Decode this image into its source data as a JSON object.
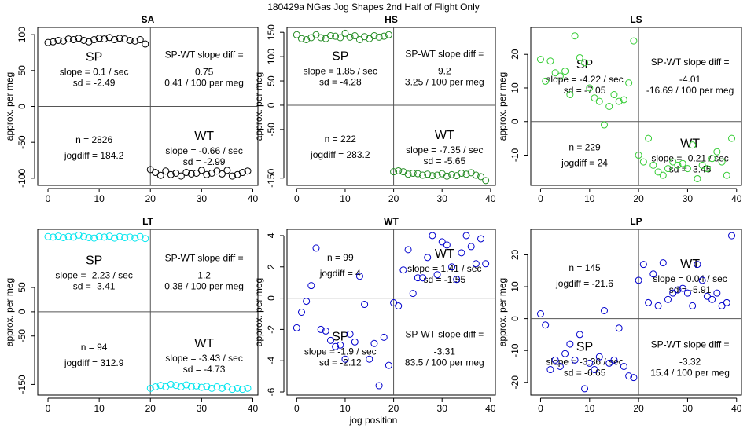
{
  "figure": {
    "title": "180429a   NGas Jog Shapes 2nd Half of Flight Only",
    "xlabel": "jog position"
  },
  "chart_data": [
    {
      "id": "SA",
      "type": "scatter",
      "title": "SA",
      "color": "#000000",
      "ylabel": "approx. per meg",
      "xlim": [
        -2,
        41
      ],
      "ylim": [
        -110,
        110
      ],
      "xticks": [
        0,
        10,
        20,
        30,
        40
      ],
      "xtick_labels": [
        "0",
        "10",
        "20",
        "30",
        "40"
      ],
      "yticks": [
        -100,
        -50,
        0,
        50,
        100
      ],
      "ytick_labels": [
        "-100",
        "-50",
        "0",
        "50",
        "100"
      ],
      "hline": 0,
      "vline": 20,
      "points": [
        [
          0,
          89
        ],
        [
          1,
          90
        ],
        [
          2,
          92
        ],
        [
          3,
          91
        ],
        [
          4,
          94
        ],
        [
          5,
          93
        ],
        [
          6,
          95
        ],
        [
          7,
          92
        ],
        [
          8,
          90
        ],
        [
          9,
          93
        ],
        [
          10,
          95
        ],
        [
          11,
          94
        ],
        [
          12,
          96
        ],
        [
          13,
          93
        ],
        [
          14,
          95
        ],
        [
          15,
          94
        ],
        [
          16,
          92
        ],
        [
          17,
          91
        ],
        [
          18,
          93
        ],
        [
          19,
          87
        ],
        [
          20,
          -88
        ],
        [
          21,
          -92
        ],
        [
          22,
          -96
        ],
        [
          23,
          -90
        ],
        [
          24,
          -95
        ],
        [
          25,
          -93
        ],
        [
          26,
          -97
        ],
        [
          27,
          -92
        ],
        [
          28,
          -94
        ],
        [
          29,
          -93
        ],
        [
          30,
          -89
        ],
        [
          31,
          -95
        ],
        [
          32,
          -93
        ],
        [
          33,
          -90
        ],
        [
          34,
          -94
        ],
        [
          35,
          -89
        ],
        [
          36,
          -97
        ],
        [
          37,
          -95
        ],
        [
          38,
          -92
        ],
        [
          39,
          -90
        ]
      ],
      "annotations": {
        "sp_label": "SP",
        "sp_slope": "slope = 0.1 / sec",
        "sp_sd": "sd = -2.49",
        "wt_label": "WT",
        "wt_slope": "slope = -0.66 / sec",
        "wt_sd": "sd = -2.99",
        "n": "n = 2826",
        "jogdiff": "jogdiff = 184.2",
        "diff_title": "SP-WT slope diff =",
        "diff_value": "0.75",
        "diff_per": "0.41 / 100 per meg"
      }
    },
    {
      "id": "HS",
      "type": "scatter",
      "title": "HS",
      "color": "#228B22",
      "ylabel": "approx. per meg",
      "xlim": [
        -2,
        41
      ],
      "ylim": [
        -165,
        160
      ],
      "xticks": [
        0,
        10,
        20,
        30,
        40
      ],
      "xtick_labels": [
        "0",
        "10",
        "20",
        "30",
        "40"
      ],
      "yticks": [
        -150,
        -50,
        0,
        50,
        100,
        150
      ],
      "ytick_labels": [
        "-150",
        "-50",
        "0",
        "50",
        "100",
        "150"
      ],
      "hline": 0,
      "vline": 20,
      "points": [
        [
          0,
          145
        ],
        [
          1,
          137
        ],
        [
          2,
          135
        ],
        [
          3,
          139
        ],
        [
          4,
          145
        ],
        [
          5,
          139
        ],
        [
          6,
          137
        ],
        [
          7,
          143
        ],
        [
          8,
          142
        ],
        [
          9,
          139
        ],
        [
          10,
          148
        ],
        [
          11,
          140
        ],
        [
          12,
          143
        ],
        [
          13,
          135
        ],
        [
          14,
          141
        ],
        [
          15,
          137
        ],
        [
          16,
          143
        ],
        [
          17,
          140
        ],
        [
          18,
          142
        ],
        [
          19,
          145
        ],
        [
          20,
          -137
        ],
        [
          21,
          -135
        ],
        [
          22,
          -137
        ],
        [
          23,
          -142
        ],
        [
          24,
          -140
        ],
        [
          25,
          -141
        ],
        [
          26,
          -144
        ],
        [
          27,
          -142
        ],
        [
          28,
          -145
        ],
        [
          29,
          -144
        ],
        [
          30,
          -141
        ],
        [
          31,
          -146
        ],
        [
          32,
          -143
        ],
        [
          33,
          -145
        ],
        [
          34,
          -140
        ],
        [
          35,
          -142
        ],
        [
          36,
          -139
        ],
        [
          37,
          -144
        ],
        [
          38,
          -147
        ],
        [
          39,
          -155
        ]
      ],
      "annotations": {
        "sp_label": "SP",
        "sp_slope": "slope = 1.85 / sec",
        "sp_sd": "sd = -4.28",
        "wt_label": "WT",
        "wt_slope": "slope = -7.35 / sec",
        "wt_sd": "sd = -5.65",
        "n": "n = 222",
        "jogdiff": "jogdiff = 283.2",
        "diff_title": "SP-WT slope diff =",
        "diff_value": "9.2",
        "diff_per": "3.25 / 100 per meg"
      }
    },
    {
      "id": "LS",
      "type": "scatter",
      "title": "LS",
      "color": "#33CC33",
      "ylabel": "approx. per meg",
      "xlim": [
        -2,
        41
      ],
      "ylim": [
        -19,
        28
      ],
      "xticks": [
        0,
        10,
        20,
        30,
        40
      ],
      "xtick_labels": [
        "0",
        "10",
        "20",
        "30",
        "40"
      ],
      "yticks": [
        -10,
        0,
        10,
        20
      ],
      "ytick_labels": [
        "-10",
        "0",
        "10",
        "20"
      ],
      "hline": 0,
      "vline": 20,
      "points": [
        [
          0,
          18.5
        ],
        [
          1,
          12
        ],
        [
          2,
          18
        ],
        [
          3,
          14.5
        ],
        [
          4,
          13.5
        ],
        [
          5,
          15
        ],
        [
          6,
          8
        ],
        [
          7,
          25.5
        ],
        [
          8,
          19
        ],
        [
          9,
          17.5
        ],
        [
          10,
          10
        ],
        [
          11,
          7
        ],
        [
          12,
          6
        ],
        [
          13,
          -1
        ],
        [
          14,
          4.5
        ],
        [
          15,
          8
        ],
        [
          16,
          6
        ],
        [
          17,
          6.5
        ],
        [
          18,
          11.5
        ],
        [
          19,
          24
        ],
        [
          20,
          -10
        ],
        [
          21,
          -12
        ],
        [
          22,
          -5
        ],
        [
          23,
          -13
        ],
        [
          24,
          -15
        ],
        [
          25,
          -16
        ],
        [
          26,
          -14
        ],
        [
          27,
          -12
        ],
        [
          28,
          -13
        ],
        [
          29,
          -12.5
        ],
        [
          30,
          -14
        ],
        [
          31,
          -7
        ],
        [
          32,
          -17
        ],
        [
          33,
          -13
        ],
        [
          34,
          -14
        ],
        [
          35,
          -11
        ],
        [
          36,
          -9
        ],
        [
          37,
          -12
        ],
        [
          38,
          -16
        ],
        [
          39,
          -5
        ]
      ],
      "annotations": {
        "sp_label": "SP",
        "sp_slope": "slope = -4.22 / sec",
        "sp_sd": "sd = -7.05",
        "wt_label": "WT",
        "wt_slope": "slope = -0.21 / sec",
        "wt_sd": "sd = -3.45",
        "n": "n = 229",
        "jogdiff": "jogdiff = 24",
        "diff_title": "SP-WT slope diff =",
        "diff_value": "-4.01",
        "diff_per": "-16.69 / 100 per meg"
      }
    },
    {
      "id": "LT",
      "type": "scatter",
      "title": "LT",
      "color": "#00E5EE",
      "ylabel": "approx. per meg",
      "xlim": [
        -2,
        41
      ],
      "ylim": [
        -172,
        170
      ],
      "xticks": [
        0,
        10,
        20,
        30,
        40
      ],
      "xtick_labels": [
        "0",
        "10",
        "20",
        "30",
        "40"
      ],
      "yticks": [
        -150,
        -50,
        0,
        50
      ],
      "ytick_labels": [
        "-150",
        "-50",
        "0",
        "50"
      ],
      "hline": 0,
      "vline": 20,
      "points": [
        [
          0,
          155
        ],
        [
          1,
          154
        ],
        [
          2,
          156
        ],
        [
          3,
          153
        ],
        [
          4,
          155
        ],
        [
          5,
          154
        ],
        [
          6,
          158
        ],
        [
          7,
          155
        ],
        [
          8,
          153
        ],
        [
          9,
          152
        ],
        [
          10,
          155
        ],
        [
          11,
          154
        ],
        [
          12,
          156
        ],
        [
          13,
          152
        ],
        [
          14,
          155
        ],
        [
          15,
          153
        ],
        [
          16,
          154
        ],
        [
          17,
          152
        ],
        [
          18,
          155
        ],
        [
          19,
          151
        ],
        [
          20,
          -158
        ],
        [
          21,
          -155
        ],
        [
          22,
          -152
        ],
        [
          23,
          -155
        ],
        [
          24,
          -150
        ],
        [
          25,
          -152
        ],
        [
          26,
          -155
        ],
        [
          27,
          -151
        ],
        [
          28,
          -155
        ],
        [
          29,
          -153
        ],
        [
          30,
          -156
        ],
        [
          31,
          -154
        ],
        [
          32,
          -158
        ],
        [
          33,
          -155
        ],
        [
          34,
          -158
        ],
        [
          35,
          -155
        ],
        [
          36,
          -160
        ],
        [
          37,
          -158
        ],
        [
          38,
          -160
        ],
        [
          39,
          -158
        ]
      ],
      "annotations": {
        "sp_label": "SP",
        "sp_slope": "slope = -2.23 / sec",
        "sp_sd": "sd = -3.41",
        "wt_label": "WT",
        "wt_slope": "slope = -3.43 / sec",
        "wt_sd": "sd = -4.73",
        "n": "n = 94",
        "jogdiff": "jogdiff = 312.9",
        "diff_title": "SP-WT slope diff =",
        "diff_value": "1.2",
        "diff_per": "0.38 / 100 per meg"
      }
    },
    {
      "id": "WT",
      "type": "scatter",
      "title": "WT",
      "color": "#0000CD",
      "ylabel": "approx. per meg",
      "xlim": [
        -2,
        41
      ],
      "ylim": [
        -6.2,
        4.4
      ],
      "xticks": [
        0,
        10,
        20,
        30,
        40
      ],
      "xtick_labels": [
        "0",
        "10",
        "20",
        "30",
        "40"
      ],
      "yticks": [
        -6,
        -4,
        -2,
        0,
        2,
        4
      ],
      "ytick_labels": [
        "-6",
        "-4",
        "-2",
        "0",
        "2",
        "4"
      ],
      "hline": 0,
      "vline": 20,
      "points": [
        [
          0,
          -1.9
        ],
        [
          1,
          -0.9
        ],
        [
          2,
          -0.2
        ],
        [
          3,
          0.8
        ],
        [
          4,
          3.2
        ],
        [
          5,
          -2
        ],
        [
          6,
          -2.1
        ],
        [
          7,
          -2.7
        ],
        [
          8,
          -3.1
        ],
        [
          9,
          -3
        ],
        [
          10,
          -3.9
        ],
        [
          11,
          -2.3
        ],
        [
          12,
          -2.8
        ],
        [
          13,
          1.4
        ],
        [
          14,
          -0.4
        ],
        [
          15,
          -3.9
        ],
        [
          16,
          -2.9
        ],
        [
          17,
          -5.6
        ],
        [
          18,
          -2.5
        ],
        [
          19,
          -4.3
        ],
        [
          20,
          -0.3
        ],
        [
          21,
          -0.5
        ],
        [
          22,
          1.8
        ],
        [
          23,
          3.1
        ],
        [
          24,
          0.3
        ],
        [
          25,
          1.3
        ],
        [
          26,
          1.3
        ],
        [
          27,
          2.6
        ],
        [
          28,
          4.0
        ],
        [
          29,
          1.5
        ],
        [
          30,
          3.6
        ],
        [
          31,
          3.4
        ],
        [
          32,
          2.0
        ],
        [
          33,
          1.2
        ],
        [
          34,
          2.9
        ],
        [
          35,
          4.0
        ],
        [
          36,
          3.3
        ],
        [
          37,
          2.2
        ],
        [
          38,
          3.8
        ],
        [
          39,
          2.2
        ]
      ],
      "annotations": {
        "sp_label": "SP",
        "sp_slope": "slope = -1.9 / sec",
        "sp_sd": "sd = -2.12",
        "wt_label": "WT",
        "wt_slope": "slope = 1.41 / sec",
        "wt_sd": "sd = -1.55",
        "n": "n = 99",
        "jogdiff": "jogdiff = 4",
        "diff_title": "SP-WT slope diff =",
        "diff_value": "-3.31",
        "diff_per": "83.5 / 100 per meg"
      }
    },
    {
      "id": "LP",
      "type": "scatter",
      "title": "LP",
      "color": "#0000CD",
      "ylabel": "approx. per meg",
      "xlim": [
        -2,
        41
      ],
      "ylim": [
        -24,
        28
      ],
      "xticks": [
        0,
        10,
        20,
        30,
        40
      ],
      "xtick_labels": [
        "0",
        "10",
        "20",
        "30",
        "40"
      ],
      "yticks": [
        -20,
        -10,
        0,
        10,
        20
      ],
      "ytick_labels": [
        "-20",
        "-10",
        "0",
        "10",
        "20"
      ],
      "hline": 0,
      "vline": 20,
      "points": [
        [
          0,
          1.5
        ],
        [
          1,
          -2
        ],
        [
          2,
          -16
        ],
        [
          3,
          -13
        ],
        [
          4,
          -15
        ],
        [
          5,
          -11
        ],
        [
          6,
          -8
        ],
        [
          7,
          -13
        ],
        [
          8,
          -5
        ],
        [
          9,
          -22
        ],
        [
          10,
          -14
        ],
        [
          11,
          -16
        ],
        [
          12,
          -12
        ],
        [
          13,
          2.5
        ],
        [
          14,
          -14
        ],
        [
          15,
          -13
        ],
        [
          16,
          -3
        ],
        [
          17,
          -15
        ],
        [
          18,
          -18
        ],
        [
          19,
          -18.5
        ],
        [
          20,
          12
        ],
        [
          21,
          17
        ],
        [
          22,
          5
        ],
        [
          23,
          14
        ],
        [
          24,
          4
        ],
        [
          25,
          17.5
        ],
        [
          26,
          6
        ],
        [
          27,
          8
        ],
        [
          28,
          9
        ],
        [
          29,
          9.5
        ],
        [
          30,
          8
        ],
        [
          31,
          4
        ],
        [
          32,
          17
        ],
        [
          33,
          12
        ],
        [
          34,
          7
        ],
        [
          35,
          6
        ],
        [
          36,
          8
        ],
        [
          37,
          4
        ],
        [
          38,
          5
        ],
        [
          39,
          26
        ]
      ],
      "annotations": {
        "sp_label": "SP",
        "sp_slope": "slope = -3.36 / sec",
        "sp_sd": "sd = -6.65",
        "wt_label": "WT",
        "wt_slope": "slope = 0.04 / sec",
        "wt_sd": "sd = -5.91",
        "n": "n = 145",
        "jogdiff": "jogdiff = -21.6",
        "diff_title": "SP-WT slope diff =",
        "diff_value": "-3.32",
        "diff_per": "15.4 / 100 per meg"
      }
    }
  ]
}
